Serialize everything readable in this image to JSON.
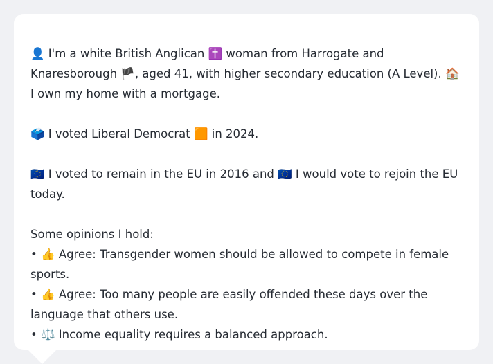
{
  "profile": {
    "intro": {
      "icon_person": "👤",
      "text_a": " I'm a white British Anglican ",
      "icon_cross": "✝️",
      "text_b": " woman from Harrogate and Knaresborough ",
      "icon_flag": "🏴",
      "text_c": ", aged 41, with higher secondary education (A Level). ",
      "icon_house": "🏠",
      "text_d": " I own my home with a mortgage."
    },
    "vote": {
      "icon_ballot": "🗳️",
      "text_a": " I voted Liberal Democrat ",
      "icon_party": "🟧",
      "text_b": " in 2024."
    },
    "eu": {
      "icon_eu_1": "🇪🇺",
      "text_a": " I voted to remain in the EU in 2016 and ",
      "icon_eu_2": "🇪🇺",
      "text_b": " I would vote to rejoin the EU today."
    },
    "opinions": {
      "heading": "Some opinions I hold:",
      "items": [
        {
          "bullet": "•",
          "icon": "👍",
          "text": " Agree: Transgender women should be allowed to compete in female sports."
        },
        {
          "bullet": "•",
          "icon": "👍",
          "text": " Agree: Too many people are easily offended these days over the language that others use."
        },
        {
          "bullet": "•",
          "icon": "⚖️",
          "text": " Income equality requires a balanced approach."
        }
      ]
    }
  }
}
